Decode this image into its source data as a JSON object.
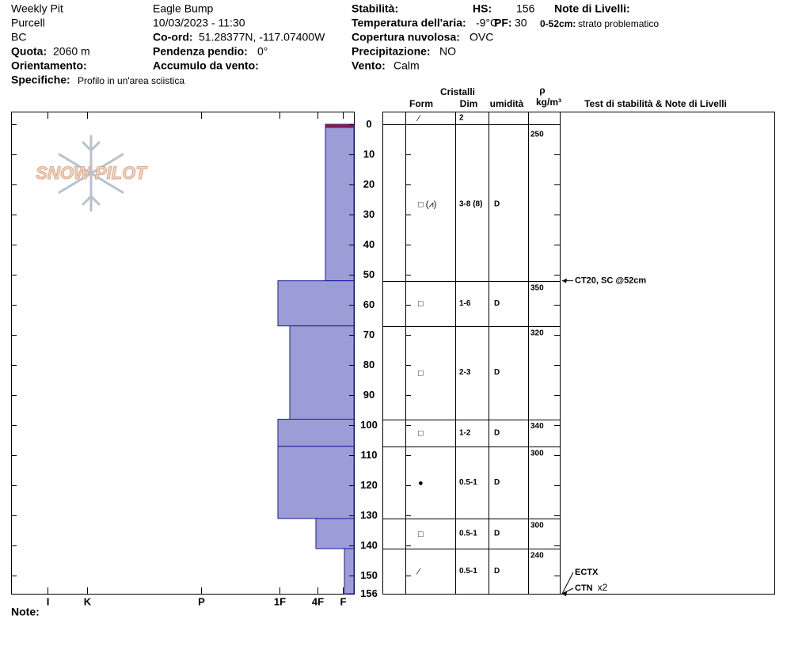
{
  "header": {
    "pit_name": "Weekly Pit",
    "range": "Purcell",
    "region": "BC",
    "elevation_label": "Quota:",
    "elevation": "2060 m",
    "aspect_label": "Orientamento:",
    "specifics_label": "Specifiche:",
    "specifics": "Profilo in un'area sciistica",
    "location": "Eagle Bump",
    "datetime": "10/03/2023 - 11:30",
    "coord_label": "Co-ord:",
    "coord": "51.28377N, -117.07400W",
    "slope_label": "Pendenza pendio:",
    "slope": "0°",
    "wind_loading_label": "Accumulo da vento:",
    "stability_label": "Stabilità:",
    "air_temp_label": "Temperatura dell'aria:",
    "air_temp": "-9°C",
    "sky_label": "Copertura nuvolosa:",
    "sky": "OVC",
    "precip_label": "Precipitazione:",
    "precip": "NO",
    "wind_label": "Vento:",
    "wind": "Calm",
    "hs_label": "HS:",
    "hs": 156,
    "pf_label": "PF:",
    "pf": 30,
    "layer_notes_label": "Note di Livelli:",
    "layer_note_range": "0-52cm:",
    "layer_note": "strato problematico",
    "logo": "SNOW PILOT",
    "notes_label": "Note:"
  },
  "chart_data": {
    "type": "snow-profile",
    "table_headers": {
      "crystals": "Cristalli",
      "form": "Form",
      "size": "Dim",
      "moisture": "umidità",
      "rho": "ρ",
      "density": "kg/m³",
      "tests": "Test di stabilità & Note di Livelli"
    },
    "ylim": [
      0,
      156
    ],
    "yticks": [
      0,
      10,
      20,
      30,
      40,
      50,
      60,
      70,
      80,
      90,
      100,
      110,
      120,
      130,
      140,
      150,
      156
    ],
    "xlim": [
      0,
      432
    ],
    "xticks": [
      {
        "value": 14,
        "label": "F"
      },
      {
        "value": 46,
        "label": "4F"
      },
      {
        "value": 94,
        "label": "1F"
      },
      {
        "value": 193,
        "label": "P"
      },
      {
        "value": 337,
        "label": "K"
      },
      {
        "value": 387,
        "label": "I"
      }
    ],
    "color": "#9c9cd6",
    "layers": [
      {
        "top": 0,
        "bottom": 1,
        "hardness": 36,
        "color": "#a01c2c",
        "form": "⁄",
        "size": "2"
      },
      {
        "top": 1,
        "bottom": 52,
        "hardness": 36,
        "form": "□ (⩘)",
        "size": "3-8 (8)",
        "moisture": "D",
        "density": 250
      },
      {
        "top": 52,
        "bottom": 67,
        "hardness": 96,
        "form": "□",
        "size": "1-6",
        "moisture": "D",
        "density": 350
      },
      {
        "top": 67,
        "bottom": 98,
        "hardness": 81,
        "form": "□",
        "size": "2-3",
        "moisture": "D",
        "density": 320
      },
      {
        "top": 98,
        "bottom": 107,
        "hardness": 96,
        "form": "□",
        "size": "1-2",
        "moisture": "D",
        "density": 340
      },
      {
        "top": 107,
        "bottom": 131,
        "hardness": 96,
        "form": "●",
        "size": "0.5-1",
        "moisture": "D",
        "density": 300
      },
      {
        "top": 131,
        "bottom": 141,
        "hardness": 48,
        "form": "□",
        "size": "0.5-1",
        "moisture": "D",
        "density": 300
      },
      {
        "top": 141,
        "bottom": 156,
        "hardness": 12,
        "form": "⁄",
        "size": "0.5-1",
        "moisture": "D",
        "density": 240
      }
    ],
    "tests": [
      {
        "depth": 52,
        "label": "CT20, SC @52cm"
      },
      {
        "depth": 156,
        "label": "ECTX"
      },
      {
        "depth": 156,
        "label": "CTN",
        "extra": "x2"
      }
    ]
  }
}
